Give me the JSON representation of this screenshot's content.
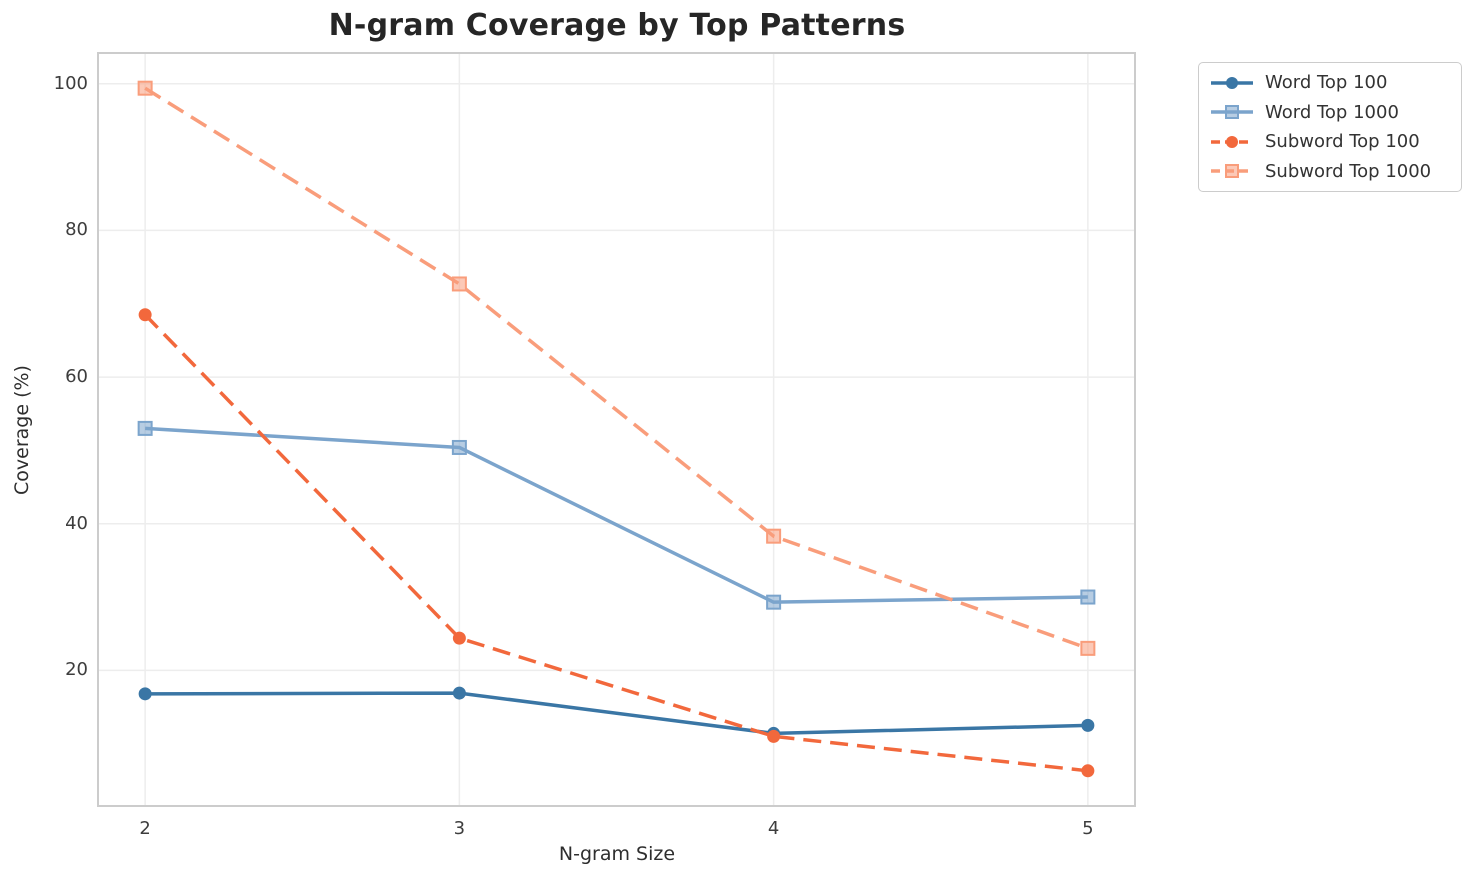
{
  "chart_data": {
    "type": "line",
    "title": "N-gram Coverage by Top Patterns",
    "xlabel": "N-gram Size",
    "ylabel": "Coverage (%)",
    "x": [
      2,
      3,
      4,
      5
    ],
    "x_ticks": [
      "2",
      "3",
      "4",
      "5"
    ],
    "y_ticks": [
      20,
      40,
      60,
      80,
      100
    ],
    "xlim": [
      1.85,
      5.15
    ],
    "ylim": [
      1.5,
      104.2
    ],
    "grid": true,
    "legend_position": "outside-top-right",
    "series": [
      {
        "name": "Word Top 100",
        "color": "#3a76a5",
        "line_style": "solid",
        "marker": "circle",
        "values": [
          16.8,
          16.9,
          11.4,
          12.5
        ]
      },
      {
        "name": "Word Top 1000",
        "color": "#7ba4cc",
        "line_style": "solid",
        "marker": "square",
        "values": [
          53.0,
          50.4,
          29.3,
          30.0
        ]
      },
      {
        "name": "Subword Top 100",
        "color": "#f2683c",
        "line_style": "dashed",
        "marker": "circle",
        "values": [
          68.5,
          24.4,
          11.0,
          6.3
        ]
      },
      {
        "name": "Subword Top 1000",
        "color": "#f99d7b",
        "line_style": "dashed",
        "marker": "square",
        "values": [
          99.4,
          72.7,
          38.3,
          23.0
        ]
      }
    ],
    "colors": {
      "grid": "#ededed",
      "spine": "#cccccc",
      "tick_label": "#3d3d3d",
      "title": "#262626",
      "axis_label": "#2e2e2e",
      "legend_border": "#cccccc",
      "legend_text": "#333333",
      "background": "#ffffff"
    }
  }
}
